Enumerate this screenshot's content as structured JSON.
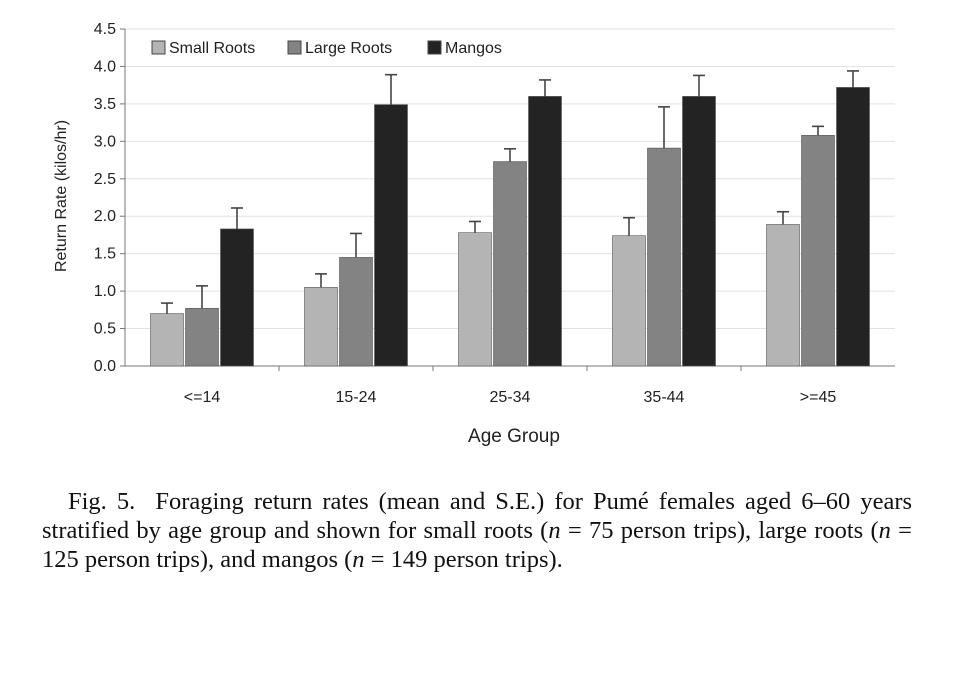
{
  "chart_data": {
    "type": "bar",
    "title": "",
    "xlabel": "Age Group",
    "ylabel": "Return Rate (kilos/hr)",
    "ylim": [
      0,
      4.5
    ],
    "yticks": [
      "0.0",
      "0.5",
      "1.0",
      "1.5",
      "2.0",
      "2.5",
      "3.0",
      "3.5",
      "4.0",
      "4.5"
    ],
    "grid": true,
    "legend_position": "top-left",
    "categories": [
      "<=14",
      "15-24",
      "25-34",
      "35-44",
      ">=45"
    ],
    "series": [
      {
        "name": "Small Roots",
        "color": "#b4b4b4",
        "values": [
          0.7,
          1.05,
          1.78,
          1.74,
          1.89
        ],
        "se": [
          0.14,
          0.18,
          0.15,
          0.24,
          0.17
        ]
      },
      {
        "name": "Large Roots",
        "color": "#838383",
        "values": [
          0.77,
          1.45,
          2.73,
          2.91,
          3.08
        ],
        "se": [
          0.3,
          0.32,
          0.17,
          0.55,
          0.12
        ]
      },
      {
        "name": "Mangos",
        "color": "#232323",
        "values": [
          1.83,
          3.49,
          3.6,
          3.6,
          3.72
        ],
        "se": [
          0.28,
          0.4,
          0.22,
          0.28,
          0.22
        ]
      }
    ]
  },
  "caption": {
    "fig_label": "Fig. 5.",
    "part1": "Foraging return rates (mean and S.E.) for Pumé females aged 6–60 years stratified by age group and shown for small roots (",
    "n_symbol": "n",
    "part2": " = 75 person trips), large roots (",
    "part3": " = 125 person trips), and mangos (",
    "part4": " = 149 person trips)."
  }
}
